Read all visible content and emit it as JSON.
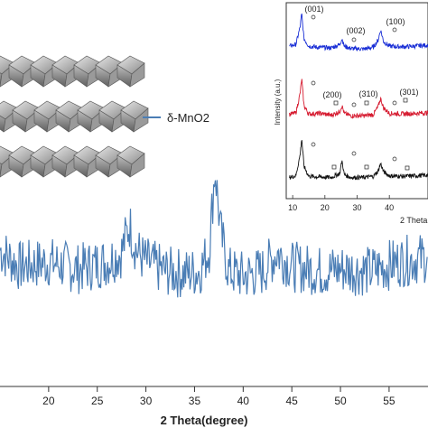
{
  "legend": {
    "label": "δ-MnO2",
    "color": "#4a7db5"
  },
  "chart_data": [
    {
      "type": "line",
      "title": "",
      "xlabel": "2 Theta(degree)",
      "ylabel": "",
      "xlim": [
        15,
        59
      ],
      "xticks": [
        20,
        25,
        30,
        35,
        40,
        45,
        50,
        55
      ],
      "tick_labels": [
        "20",
        "25",
        "30",
        "35",
        "40",
        "45",
        "50",
        "55"
      ],
      "series": [
        {
          "name": "δ-MnO2",
          "color": "#4a7db5",
          "x": [
            15,
            17,
            20,
            23,
            26,
            27.5,
            28.3,
            29,
            30,
            32,
            34,
            35.5,
            36.5,
            37.1,
            37.7,
            38.5,
            40,
            42,
            43.5,
            45,
            48,
            50,
            53,
            56,
            59
          ],
          "y": [
            0.55,
            0.48,
            0.5,
            0.47,
            0.5,
            0.54,
            0.66,
            0.55,
            0.5,
            0.46,
            0.45,
            0.46,
            0.55,
            0.9,
            0.62,
            0.46,
            0.44,
            0.46,
            0.54,
            0.48,
            0.46,
            0.47,
            0.46,
            0.5,
            0.52
          ]
        }
      ]
    },
    {
      "type": "line",
      "title": "",
      "xlabel": "2 Theta",
      "ylabel": "Intensity (a.u.)",
      "xlim": [
        8,
        52
      ],
      "xticks": [
        10,
        20,
        30,
        40
      ],
      "tick_labels": [
        "10",
        "20",
        "30",
        "40"
      ],
      "annotations": [
        "(001)",
        "(002)",
        "(100)",
        "(200)",
        "(310)",
        "(301)"
      ],
      "series": [
        {
          "name": "",
          "color": "#1a2fd6",
          "x": [
            9,
            11,
            12.3,
            12.8,
            13.5,
            15,
            18,
            22,
            24.6,
            25.3,
            26,
            28,
            32,
            35,
            36.5,
            37.3,
            38.2,
            40,
            44,
            48,
            52
          ],
          "y": [
            0.42,
            0.45,
            0.75,
            0.98,
            0.55,
            0.42,
            0.4,
            0.39,
            0.45,
            0.55,
            0.42,
            0.38,
            0.37,
            0.4,
            0.52,
            0.7,
            0.5,
            0.42,
            0.41,
            0.42,
            0.44
          ]
        },
        {
          "name": "",
          "color": "#d61a2f",
          "x": [
            9,
            11,
            12.3,
            12.8,
            13.5,
            15,
            18.5,
            22,
            24.6,
            25.3,
            26,
            28,
            32,
            35,
            36.5,
            37.3,
            38.2,
            40,
            44,
            48,
            52
          ],
          "y": [
            0.35,
            0.38,
            0.7,
            0.95,
            0.5,
            0.36,
            0.37,
            0.34,
            0.4,
            0.5,
            0.37,
            0.33,
            0.33,
            0.35,
            0.48,
            0.62,
            0.46,
            0.37,
            0.36,
            0.37,
            0.38
          ]
        },
        {
          "name": "",
          "color": "#111111",
          "x": [
            9,
            11,
            12.3,
            12.8,
            13.5,
            15,
            18,
            22,
            24.6,
            25.3,
            26,
            28,
            32,
            35,
            36.5,
            37.3,
            38.2,
            40,
            44,
            48,
            52
          ],
          "y": [
            0.25,
            0.28,
            0.65,
            0.95,
            0.45,
            0.27,
            0.26,
            0.25,
            0.32,
            0.55,
            0.3,
            0.25,
            0.25,
            0.27,
            0.36,
            0.5,
            0.35,
            0.28,
            0.27,
            0.28,
            0.29
          ]
        }
      ]
    }
  ]
}
